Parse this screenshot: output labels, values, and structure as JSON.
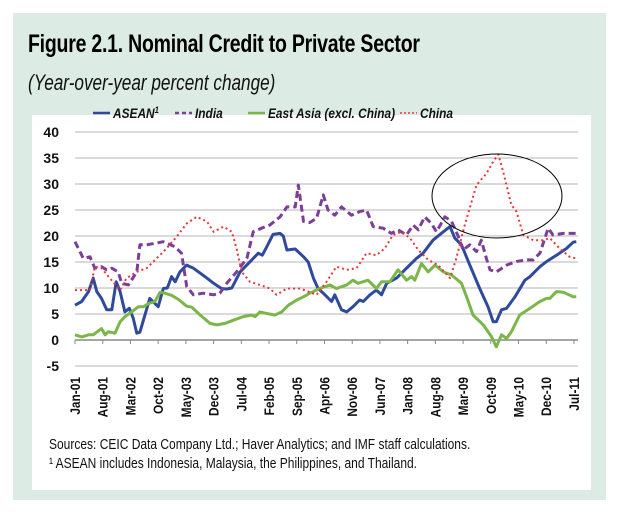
{
  "header": {
    "title": "Figure 2.1.  Nominal Credit to Private Sector",
    "subtitle": "(Year-over-year percent change)"
  },
  "footer": {
    "sources": "Sources: CEIC Data Company Ltd.; Haver Analytics; and  IMF staff calculations.",
    "footnote": "¹ ASEAN includes Indonesia, Malaysia, the Philippines, and Thailand."
  },
  "chart_data": {
    "type": "line",
    "title": "Nominal Credit to Private Sector",
    "subtitle": "Year-over-year percent change",
    "xlabel": "",
    "ylabel": "",
    "x_unit": "months since Jan-01",
    "xlim": [
      0,
      127
    ],
    "ylim": [
      -5,
      40
    ],
    "yticks": [
      40,
      35,
      30,
      25,
      20,
      15,
      10,
      5,
      0,
      -5
    ],
    "xtick_labels": [
      "Jan-01",
      "Aug-01",
      "Mar-02",
      "Oct-02",
      "May-03",
      "Dec-03",
      "Jul-04",
      "Feb-05",
      "Sep-05",
      "Apr-06",
      "Nov-06",
      "Jun-07",
      "Jan-08",
      "Aug-08",
      "Mar-09",
      "Oct-09",
      "May-10",
      "Dec-10",
      "Jul-11"
    ],
    "xtick_step_months": 7,
    "grid": true,
    "legend_position": "top",
    "annotation": "ellipse highlighting China peak around Oct-09",
    "series": [
      {
        "name": "ASEAN",
        "sup": "1",
        "color": "#2f4a9c",
        "style": "solid",
        "points": [
          [
            0,
            6.7
          ],
          [
            1.7,
            7.4
          ],
          [
            3.4,
            9.3
          ],
          [
            4.6,
            11.9
          ],
          [
            5.5,
            9.3
          ],
          [
            6.7,
            8
          ],
          [
            8,
            5.8
          ],
          [
            9.3,
            5.8
          ],
          [
            10.4,
            11.2
          ],
          [
            11.4,
            9.3
          ],
          [
            12.6,
            5.4
          ],
          [
            13.7,
            6.1
          ],
          [
            14.7,
            4.2
          ],
          [
            15.6,
            1.3
          ],
          [
            16.4,
            1.5
          ],
          [
            18.9,
            8
          ],
          [
            21,
            6.4
          ],
          [
            22.3,
            9.9
          ],
          [
            23.3,
            10
          ],
          [
            24.4,
            12.2
          ],
          [
            25.3,
            11.2
          ],
          [
            26.5,
            13.1
          ],
          [
            28.2,
            14.4
          ],
          [
            29.9,
            13.8
          ],
          [
            33.3,
            11.9
          ],
          [
            35,
            10.9
          ],
          [
            37,
            9.9
          ],
          [
            38.3,
            9.8
          ],
          [
            39.6,
            10
          ],
          [
            41.7,
            13.1
          ],
          [
            45,
            15.7
          ],
          [
            46.3,
            16.7
          ],
          [
            47.3,
            16.3
          ],
          [
            48.4,
            17.9
          ],
          [
            50,
            20.3
          ],
          [
            51.8,
            20.5
          ],
          [
            52.6,
            20
          ],
          [
            53.5,
            17.3
          ],
          [
            55.6,
            17.5
          ],
          [
            57.7,
            16
          ],
          [
            58.9,
            15
          ],
          [
            60.2,
            11.9
          ],
          [
            61.4,
            9.9
          ],
          [
            62.7,
            9
          ],
          [
            64.8,
            7.4
          ],
          [
            65.6,
            8.7
          ],
          [
            67.3,
            5.8
          ],
          [
            68.6,
            5.4
          ],
          [
            70.2,
            6.4
          ],
          [
            71.9,
            7.7
          ],
          [
            72.8,
            7.4
          ],
          [
            74.5,
            8.7
          ],
          [
            76.1,
            9.6
          ],
          [
            77.4,
            8.7
          ],
          [
            78.7,
            10.9
          ],
          [
            81.2,
            11.9
          ],
          [
            83.7,
            13.8
          ],
          [
            86.2,
            15.7
          ],
          [
            87.9,
            16.7
          ],
          [
            90.4,
            19.2
          ],
          [
            93,
            20.8
          ],
          [
            94.7,
            21.8
          ],
          [
            95.9,
            19.6
          ],
          [
            97.6,
            18.3
          ],
          [
            99.7,
            14.4
          ],
          [
            102.2,
            9.9
          ],
          [
            104.3,
            6.4
          ],
          [
            105.6,
            3.5
          ],
          [
            106.4,
            3.5
          ],
          [
            107.7,
            5.8
          ],
          [
            109,
            6.1
          ],
          [
            111.1,
            8.3
          ],
          [
            113.6,
            11.5
          ],
          [
            114.9,
            12.2
          ],
          [
            117.4,
            14.1
          ],
          [
            119.1,
            15.1
          ],
          [
            121.6,
            16.3
          ],
          [
            124.1,
            17.6
          ],
          [
            125.8,
            18.8
          ],
          [
            126.6,
            18.9
          ]
        ]
      },
      {
        "name": "India",
        "color": "#7b3f98",
        "style": "dashed",
        "points": [
          [
            0,
            18.9
          ],
          [
            2.1,
            15.7
          ],
          [
            3.8,
            16
          ],
          [
            5,
            13.8
          ],
          [
            6.7,
            14.1
          ],
          [
            8,
            13.5
          ],
          [
            9.3,
            13.8
          ],
          [
            10.9,
            13.1
          ],
          [
            11.8,
            10.9
          ],
          [
            13.5,
            10.6
          ],
          [
            15.6,
            13.1
          ],
          [
            16.4,
            18.3
          ],
          [
            18.1,
            18.3
          ],
          [
            20.2,
            18.6
          ],
          [
            22.3,
            18.9
          ],
          [
            25.3,
            17.9
          ],
          [
            26.9,
            16.7
          ],
          [
            28.2,
            10.3
          ],
          [
            29.9,
            8.7
          ],
          [
            32.4,
            9
          ],
          [
            35,
            8.7
          ],
          [
            36.6,
            9
          ],
          [
            38.3,
            10.9
          ],
          [
            40.8,
            13.1
          ],
          [
            43.4,
            15.7
          ],
          [
            45,
            20.8
          ],
          [
            47.1,
            21.5
          ],
          [
            49.2,
            22.1
          ],
          [
            51.8,
            23.7
          ],
          [
            53.5,
            25.6
          ],
          [
            55.6,
            25.6
          ],
          [
            56.4,
            29.8
          ],
          [
            57.7,
            22.8
          ],
          [
            59.3,
            22.6
          ],
          [
            61,
            23.4
          ],
          [
            62.7,
            27.9
          ],
          [
            63.9,
            25
          ],
          [
            65.6,
            24
          ],
          [
            67.3,
            25.6
          ],
          [
            69.8,
            24
          ],
          [
            71.9,
            24.7
          ],
          [
            73.6,
            25
          ],
          [
            75.3,
            21.8
          ],
          [
            77.8,
            21.5
          ],
          [
            79.9,
            20.5
          ],
          [
            81.6,
            21.2
          ],
          [
            83.7,
            20.2
          ],
          [
            85.4,
            22.1
          ],
          [
            86.7,
            21.2
          ],
          [
            88.3,
            23.7
          ],
          [
            90,
            22.4
          ],
          [
            91.3,
            20.8
          ],
          [
            93.4,
            23.7
          ],
          [
            95.1,
            22.8
          ],
          [
            96.8,
            19.9
          ],
          [
            98,
            17.3
          ],
          [
            99.7,
            18.3
          ],
          [
            101.4,
            17
          ],
          [
            102.6,
            19.2
          ],
          [
            103.9,
            15.7
          ],
          [
            104.8,
            13.5
          ],
          [
            106.4,
            13.1
          ],
          [
            109,
            14.4
          ],
          [
            111.5,
            15.1
          ],
          [
            114,
            15.4
          ],
          [
            115.7,
            15.4
          ],
          [
            117.4,
            16.7
          ],
          [
            119.5,
            21.5
          ],
          [
            120.7,
            20.2
          ],
          [
            123.3,
            20.5
          ],
          [
            126.6,
            20.5
          ]
        ]
      },
      {
        "name": "East Asia (excl. China)",
        "color": "#7ab648",
        "style": "solid",
        "points": [
          [
            0,
            1
          ],
          [
            1.7,
            0.6
          ],
          [
            3.4,
            1
          ],
          [
            4.6,
            1
          ],
          [
            6.7,
            2.2
          ],
          [
            7.6,
            1
          ],
          [
            8.4,
            1.6
          ],
          [
            10.1,
            1.3
          ],
          [
            11.4,
            3.5
          ],
          [
            12.6,
            4.5
          ],
          [
            14.3,
            5.4
          ],
          [
            16,
            6.4
          ],
          [
            17.3,
            6.4
          ],
          [
            18.5,
            7
          ],
          [
            20.2,
            7.4
          ],
          [
            21.5,
            9.2
          ],
          [
            22.7,
            9
          ],
          [
            24.4,
            8.6
          ],
          [
            26.1,
            7.8
          ],
          [
            28.2,
            6.5
          ],
          [
            29.5,
            6.3
          ],
          [
            31.6,
            4.8
          ],
          [
            34.1,
            3.2
          ],
          [
            35.8,
            2.9
          ],
          [
            37.9,
            3.2
          ],
          [
            40,
            3.8
          ],
          [
            42.5,
            4.5
          ],
          [
            44.6,
            4.8
          ],
          [
            45.5,
            4.5
          ],
          [
            46.7,
            5.4
          ],
          [
            48.4,
            5.1
          ],
          [
            50.5,
            4.8
          ],
          [
            52.2,
            5.4
          ],
          [
            53.9,
            6.7
          ],
          [
            56,
            7.7
          ],
          [
            57.7,
            8.3
          ],
          [
            59.3,
            9
          ],
          [
            61.8,
            9.9
          ],
          [
            64.4,
            10.6
          ],
          [
            66,
            9.9
          ],
          [
            68.6,
            10.6
          ],
          [
            70.2,
            11.5
          ],
          [
            71.5,
            10.9
          ],
          [
            74,
            11.5
          ],
          [
            76.1,
            9.9
          ],
          [
            77.4,
            11.2
          ],
          [
            79.5,
            11.2
          ],
          [
            81.6,
            13.5
          ],
          [
            83.7,
            11.5
          ],
          [
            85,
            12.2
          ],
          [
            85.8,
            11.5
          ],
          [
            87.5,
            14.7
          ],
          [
            89.2,
            13.1
          ],
          [
            90.9,
            14.4
          ],
          [
            93,
            13.1
          ],
          [
            95.1,
            12.5
          ],
          [
            97.6,
            10.9
          ],
          [
            98.9,
            8.3
          ],
          [
            100.5,
            4.8
          ],
          [
            103.1,
            2.9
          ],
          [
            105.2,
            0.6
          ],
          [
            106.4,
            -1.3
          ],
          [
            107.7,
            1
          ],
          [
            109,
            0.3
          ],
          [
            110.2,
            1.6
          ],
          [
            112.3,
            4.8
          ],
          [
            114.9,
            6.1
          ],
          [
            117.4,
            7.4
          ],
          [
            119.1,
            8
          ],
          [
            119.9,
            8
          ],
          [
            121.6,
            9.3
          ],
          [
            123.3,
            9.2
          ],
          [
            125.8,
            8.3
          ],
          [
            126.6,
            8.3
          ]
        ]
      },
      {
        "name": "China",
        "color": "#e5373a",
        "style": "dotted",
        "points": [
          [
            0,
            9.6
          ],
          [
            3.8,
            9.6
          ],
          [
            5,
            14.1
          ],
          [
            6.7,
            13.8
          ],
          [
            8.8,
            11.9
          ],
          [
            11.4,
            9.6
          ],
          [
            13,
            11.9
          ],
          [
            15.6,
            13.1
          ],
          [
            18.1,
            13.8
          ],
          [
            20.6,
            15.7
          ],
          [
            23.1,
            17.6
          ],
          [
            25.7,
            19.9
          ],
          [
            28.2,
            22.4
          ],
          [
            30.7,
            23.7
          ],
          [
            33.3,
            22.8
          ],
          [
            35,
            20.8
          ],
          [
            37.5,
            21.8
          ],
          [
            39.6,
            20.8
          ],
          [
            40.8,
            17.6
          ],
          [
            42.1,
            13.1
          ],
          [
            44.2,
            11.2
          ],
          [
            46.7,
            10.6
          ],
          [
            49.2,
            9.9
          ],
          [
            50.9,
            8.7
          ],
          [
            53.5,
            9.9
          ],
          [
            56.8,
            9.9
          ],
          [
            59.3,
            9.2
          ],
          [
            61,
            8.7
          ],
          [
            63.5,
            11.2
          ],
          [
            66,
            14.1
          ],
          [
            68.6,
            13.5
          ],
          [
            71.1,
            13.8
          ],
          [
            73.6,
            16.7
          ],
          [
            76.1,
            16.3
          ],
          [
            78.2,
            17.6
          ],
          [
            80.3,
            20.2
          ],
          [
            82.4,
            20.8
          ],
          [
            84.6,
            19.6
          ],
          [
            86.7,
            17.3
          ],
          [
            89.2,
            15.4
          ],
          [
            91.7,
            14.4
          ],
          [
            94.7,
            11.9
          ],
          [
            96.3,
            15.7
          ],
          [
            98.4,
            22.1
          ],
          [
            101.4,
            29.8
          ],
          [
            103.9,
            32
          ],
          [
            105.6,
            34.3
          ],
          [
            106.9,
            35.7
          ],
          [
            108.1,
            32.4
          ],
          [
            110.2,
            26
          ],
          [
            111.5,
            24.7
          ],
          [
            113.2,
            20.2
          ],
          [
            115.7,
            19.2
          ],
          [
            118.2,
            19.2
          ],
          [
            119.9,
            19.6
          ],
          [
            122.4,
            17.6
          ],
          [
            124.9,
            16
          ],
          [
            126.6,
            15.7
          ]
        ]
      }
    ]
  }
}
